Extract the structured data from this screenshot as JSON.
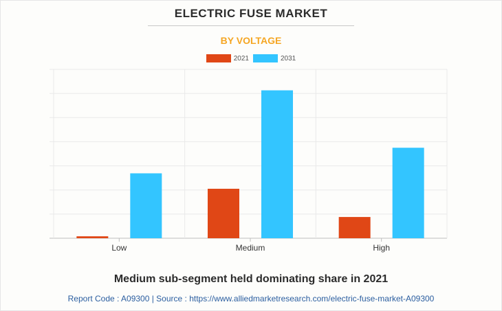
{
  "chart_data": {
    "type": "bar",
    "title": "ELECTRIC FUSE MARKET",
    "subtitle": "BY VOLTAGE",
    "categories": [
      "Low",
      "Medium",
      "High"
    ],
    "series": [
      {
        "name": "2021",
        "color": "#e04716",
        "values": [
          0.8,
          20.5,
          8.8
        ]
      },
      {
        "name": "2031",
        "color": "#33c5ff",
        "values": [
          26.9,
          61.3,
          37.5
        ]
      }
    ],
    "ylim": [
      0,
      70
    ],
    "ytick_step": 10,
    "grid": true,
    "legend": "top-center",
    "xlabel": "",
    "ylabel": ""
  },
  "caption": "Medium sub-segment held dominating share in 2021",
  "source": {
    "text": "Report Code : A09300  |  Source : https://www.alliedmarketresearch.com/electric-fuse-market-A09300"
  }
}
